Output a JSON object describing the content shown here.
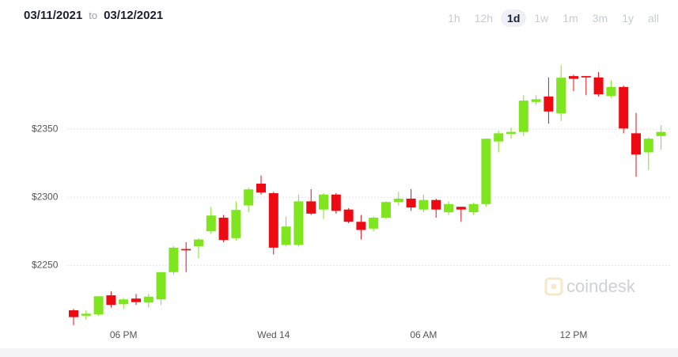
{
  "header": {
    "from": "03/11/2021",
    "separator": "to",
    "to": "03/12/2021"
  },
  "ranges": [
    "1h",
    "12h",
    "1d",
    "1w",
    "1m",
    "3m",
    "1y",
    "all"
  ],
  "selected_range": 2,
  "chart_data": {
    "type": "candlestick",
    "watermark": "coindesk",
    "up_color": "#7ee51e",
    "down_color": "#ec0b12",
    "categories": [
      null,
      null,
      null,
      null,
      "06 PM",
      null,
      null,
      null,
      null,
      null,
      null,
      null,
      null,
      null,
      null,
      null,
      "Wed 14",
      null,
      null,
      null,
      null,
      null,
      null,
      null,
      null,
      null,
      null,
      null,
      "06 AM",
      null,
      null,
      null,
      null,
      null,
      null,
      null,
      null,
      null,
      null,
      null,
      "12 PM",
      null,
      null,
      null,
      null,
      null,
      null,
      null
    ],
    "open": [
      2217,
      2213,
      2214,
      2228,
      2221.5,
      2225.6,
      2222.7,
      2225,
      2245,
      2262,
      2264,
      2275,
      2285,
      2270,
      2294,
      2310,
      2303,
      2265,
      2265,
      2297,
      2291,
      2302,
      2291,
      2282,
      2277,
      2285,
      2296.5,
      2299,
      2291,
      2298,
      2289,
      2293,
      2289,
      2295,
      2341,
      2346.5,
      2348,
      2370,
      2374,
      2361.6,
      2389,
      2389,
      2388,
      2374.4,
      2381,
      2347,
      2333,
      2345
    ],
    "high": [
      2218,
      2217,
      2227,
      2231,
      2226,
      2229,
      2229,
      2245,
      2264,
      2267,
      2270,
      2293,
      2287,
      2297,
      2307,
      2316,
      2304,
      2286,
      2302,
      2306,
      2303,
      2303,
      2292,
      2287,
      2286,
      2297,
      2304,
      2306,
      2302,
      2299,
      2297,
      2293,
      2296,
      2343,
      2349,
      2351,
      2375,
      2375,
      2388,
      2397,
      2390,
      2389,
      2392,
      2386,
      2382,
      2362,
      2344,
      2353
    ],
    "low": [
      2206,
      2210,
      2213,
      2219,
      2218,
      2221,
      2219,
      2221,
      2243,
      2245,
      2255,
      2273,
      2267,
      2268,
      2289,
      2302,
      2258,
      2264,
      2264,
      2287,
      2284,
      2288,
      2281,
      2269,
      2275,
      2284,
      2294,
      2290,
      2289,
      2285,
      2287,
      2282,
      2287,
      2293,
      2333,
      2343,
      2345,
      2368,
      2354,
      2356,
      2378,
      2375,
      2374,
      2373,
      2347,
      2315,
      2320,
      2335
    ],
    "close": [
      2212,
      2214.5,
      2227.3,
      2221,
      2225,
      2223,
      2227,
      2245,
      2263,
      2261,
      2269,
      2286.6,
      2268.6,
      2290.7,
      2305.8,
      2303.5,
      2263,
      2278.5,
      2297,
      2288,
      2302,
      2290,
      2282,
      2276,
      2285,
      2296.5,
      2299,
      2292.5,
      2298,
      2291,
      2295,
      2291,
      2295,
      2343,
      2347,
      2348,
      2371,
      2372,
      2363,
      2387.8,
      2387,
      2388,
      2375.6,
      2381,
      2350.5,
      2331.4,
      2343,
      2348
    ],
    "ylim": [
      2192,
      2410
    ],
    "yticks": [
      {
        "value": 2250,
        "label": "$2250"
      },
      {
        "value": 2300,
        "label": "$2300"
      },
      {
        "value": 2350,
        "label": "$2350"
      }
    ],
    "grid": true
  }
}
